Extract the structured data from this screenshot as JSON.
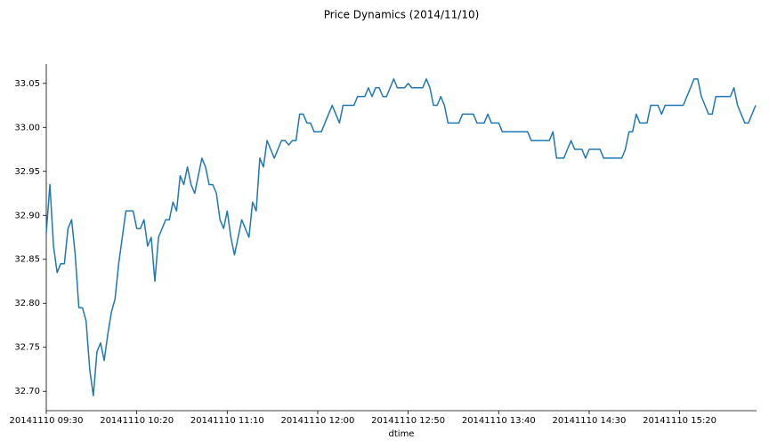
{
  "chart_data": {
    "type": "line",
    "title": "Price Dynamics (2014/11/10)",
    "x_label": "dtime",
    "color": "#1f77b4",
    "categories": [
      "20141110 09:30",
      null,
      null,
      null,
      null,
      null,
      null,
      null,
      null,
      null,
      null,
      null,
      null,
      null,
      null,
      null,
      null,
      null,
      null,
      null,
      null,
      null,
      null,
      null,
      null,
      "20141110 10:20",
      null,
      null,
      null,
      null,
      null,
      null,
      null,
      null,
      null,
      null,
      null,
      null,
      null,
      null,
      null,
      null,
      null,
      null,
      null,
      null,
      null,
      null,
      null,
      null,
      "20141110 11:10",
      null,
      null,
      null,
      null,
      null,
      null,
      null,
      null,
      null,
      null,
      null,
      null,
      null,
      null,
      null,
      null,
      null,
      null,
      null,
      null,
      null,
      null,
      null,
      null,
      "20141110 12:00",
      null,
      null,
      null,
      null,
      null,
      null,
      null,
      null,
      null,
      null,
      null,
      null,
      null,
      null,
      null,
      null,
      null,
      null,
      null,
      null,
      null,
      null,
      null,
      null,
      "20141110 12:50",
      null,
      null,
      null,
      null,
      null,
      null,
      null,
      null,
      null,
      null,
      null,
      null,
      null,
      null,
      null,
      null,
      null,
      null,
      null,
      null,
      null,
      null,
      null,
      null,
      "20141110 13:40",
      null,
      null,
      null,
      null,
      null,
      null,
      null,
      null,
      null,
      null,
      null,
      null,
      null,
      null,
      null,
      null,
      null,
      null,
      null,
      null,
      null,
      null,
      null,
      null,
      "20141110 14:30",
      null,
      null,
      null,
      null,
      null,
      null,
      null,
      null,
      null,
      null,
      null,
      null,
      null,
      null,
      null,
      null,
      null,
      null,
      null,
      null,
      null,
      null,
      null,
      null,
      "20141110 15:20",
      null,
      null,
      null,
      null,
      null,
      null,
      null,
      null,
      null,
      null,
      null,
      null,
      null,
      null,
      null,
      null,
      null,
      null,
      null,
      null,
      null
    ],
    "values": [
      32.88,
      32.935,
      32.865,
      32.835,
      32.845,
      32.845,
      32.885,
      32.895,
      32.855,
      32.795,
      32.795,
      32.78,
      32.725,
      32.695,
      32.745,
      32.755,
      32.735,
      32.765,
      32.79,
      32.805,
      32.845,
      32.875,
      32.905,
      32.905,
      32.905,
      32.885,
      32.885,
      32.895,
      32.865,
      32.875,
      32.825,
      32.875,
      32.885,
      32.895,
      32.895,
      32.915,
      32.905,
      32.945,
      32.935,
      32.955,
      32.935,
      32.925,
      32.945,
      32.965,
      32.955,
      32.935,
      32.935,
      32.925,
      32.895,
      32.885,
      32.905,
      32.875,
      32.855,
      32.875,
      32.895,
      32.885,
      32.875,
      32.915,
      32.905,
      32.965,
      32.955,
      32.985,
      32.975,
      32.965,
      32.975,
      32.985,
      32.985,
      32.98,
      32.985,
      32.985,
      33.015,
      33.015,
      33.005,
      33.005,
      32.995,
      32.995,
      32.995,
      33.005,
      33.015,
      33.025,
      33.015,
      33.005,
      33.025,
      33.025,
      33.025,
      33.025,
      33.035,
      33.035,
      33.035,
      33.045,
      33.035,
      33.045,
      33.045,
      33.035,
      33.035,
      33.045,
      33.055,
      33.045,
      33.045,
      33.045,
      33.05,
      33.045,
      33.045,
      33.045,
      33.045,
      33.055,
      33.045,
      33.025,
      33.025,
      33.035,
      33.025,
      33.005,
      33.005,
      33.005,
      33.005,
      33.015,
      33.015,
      33.015,
      33.015,
      33.005,
      33.005,
      33.005,
      33.015,
      33.005,
      33.005,
      33.005,
      32.995,
      32.995,
      32.995,
      32.995,
      32.995,
      32.995,
      32.995,
      32.995,
      32.985,
      32.985,
      32.985,
      32.985,
      32.985,
      32.985,
      32.995,
      32.965,
      32.965,
      32.965,
      32.975,
      32.985,
      32.975,
      32.975,
      32.975,
      32.965,
      32.975,
      32.975,
      32.975,
      32.975,
      32.965,
      32.965,
      32.965,
      32.965,
      32.965,
      32.965,
      32.975,
      32.995,
      32.995,
      33.015,
      33.005,
      33.005,
      33.005,
      33.025,
      33.025,
      33.025,
      33.015,
      33.025,
      33.025,
      33.025,
      33.025,
      33.025,
      33.025,
      33.035,
      33.045,
      33.055,
      33.055,
      33.035,
      33.025,
      33.015,
      33.015,
      33.035,
      33.035,
      33.035,
      33.035,
      33.035,
      33.045,
      33.025,
      33.015,
      33.005,
      33.005,
      33.015,
      33.025
    ],
    "ylim": [
      32.678,
      33.072
    ],
    "yticks": [
      {
        "value": 32.7,
        "label": "32.70"
      },
      {
        "value": 32.75,
        "label": "32.75"
      },
      {
        "value": 32.8,
        "label": "32.80"
      },
      {
        "value": 32.85,
        "label": "32.85"
      },
      {
        "value": 32.9,
        "label": "32.90"
      },
      {
        "value": 32.95,
        "label": "32.95"
      },
      {
        "value": 33.0,
        "label": "33.00"
      },
      {
        "value": 33.05,
        "label": "33.05"
      }
    ],
    "grid": false
  }
}
